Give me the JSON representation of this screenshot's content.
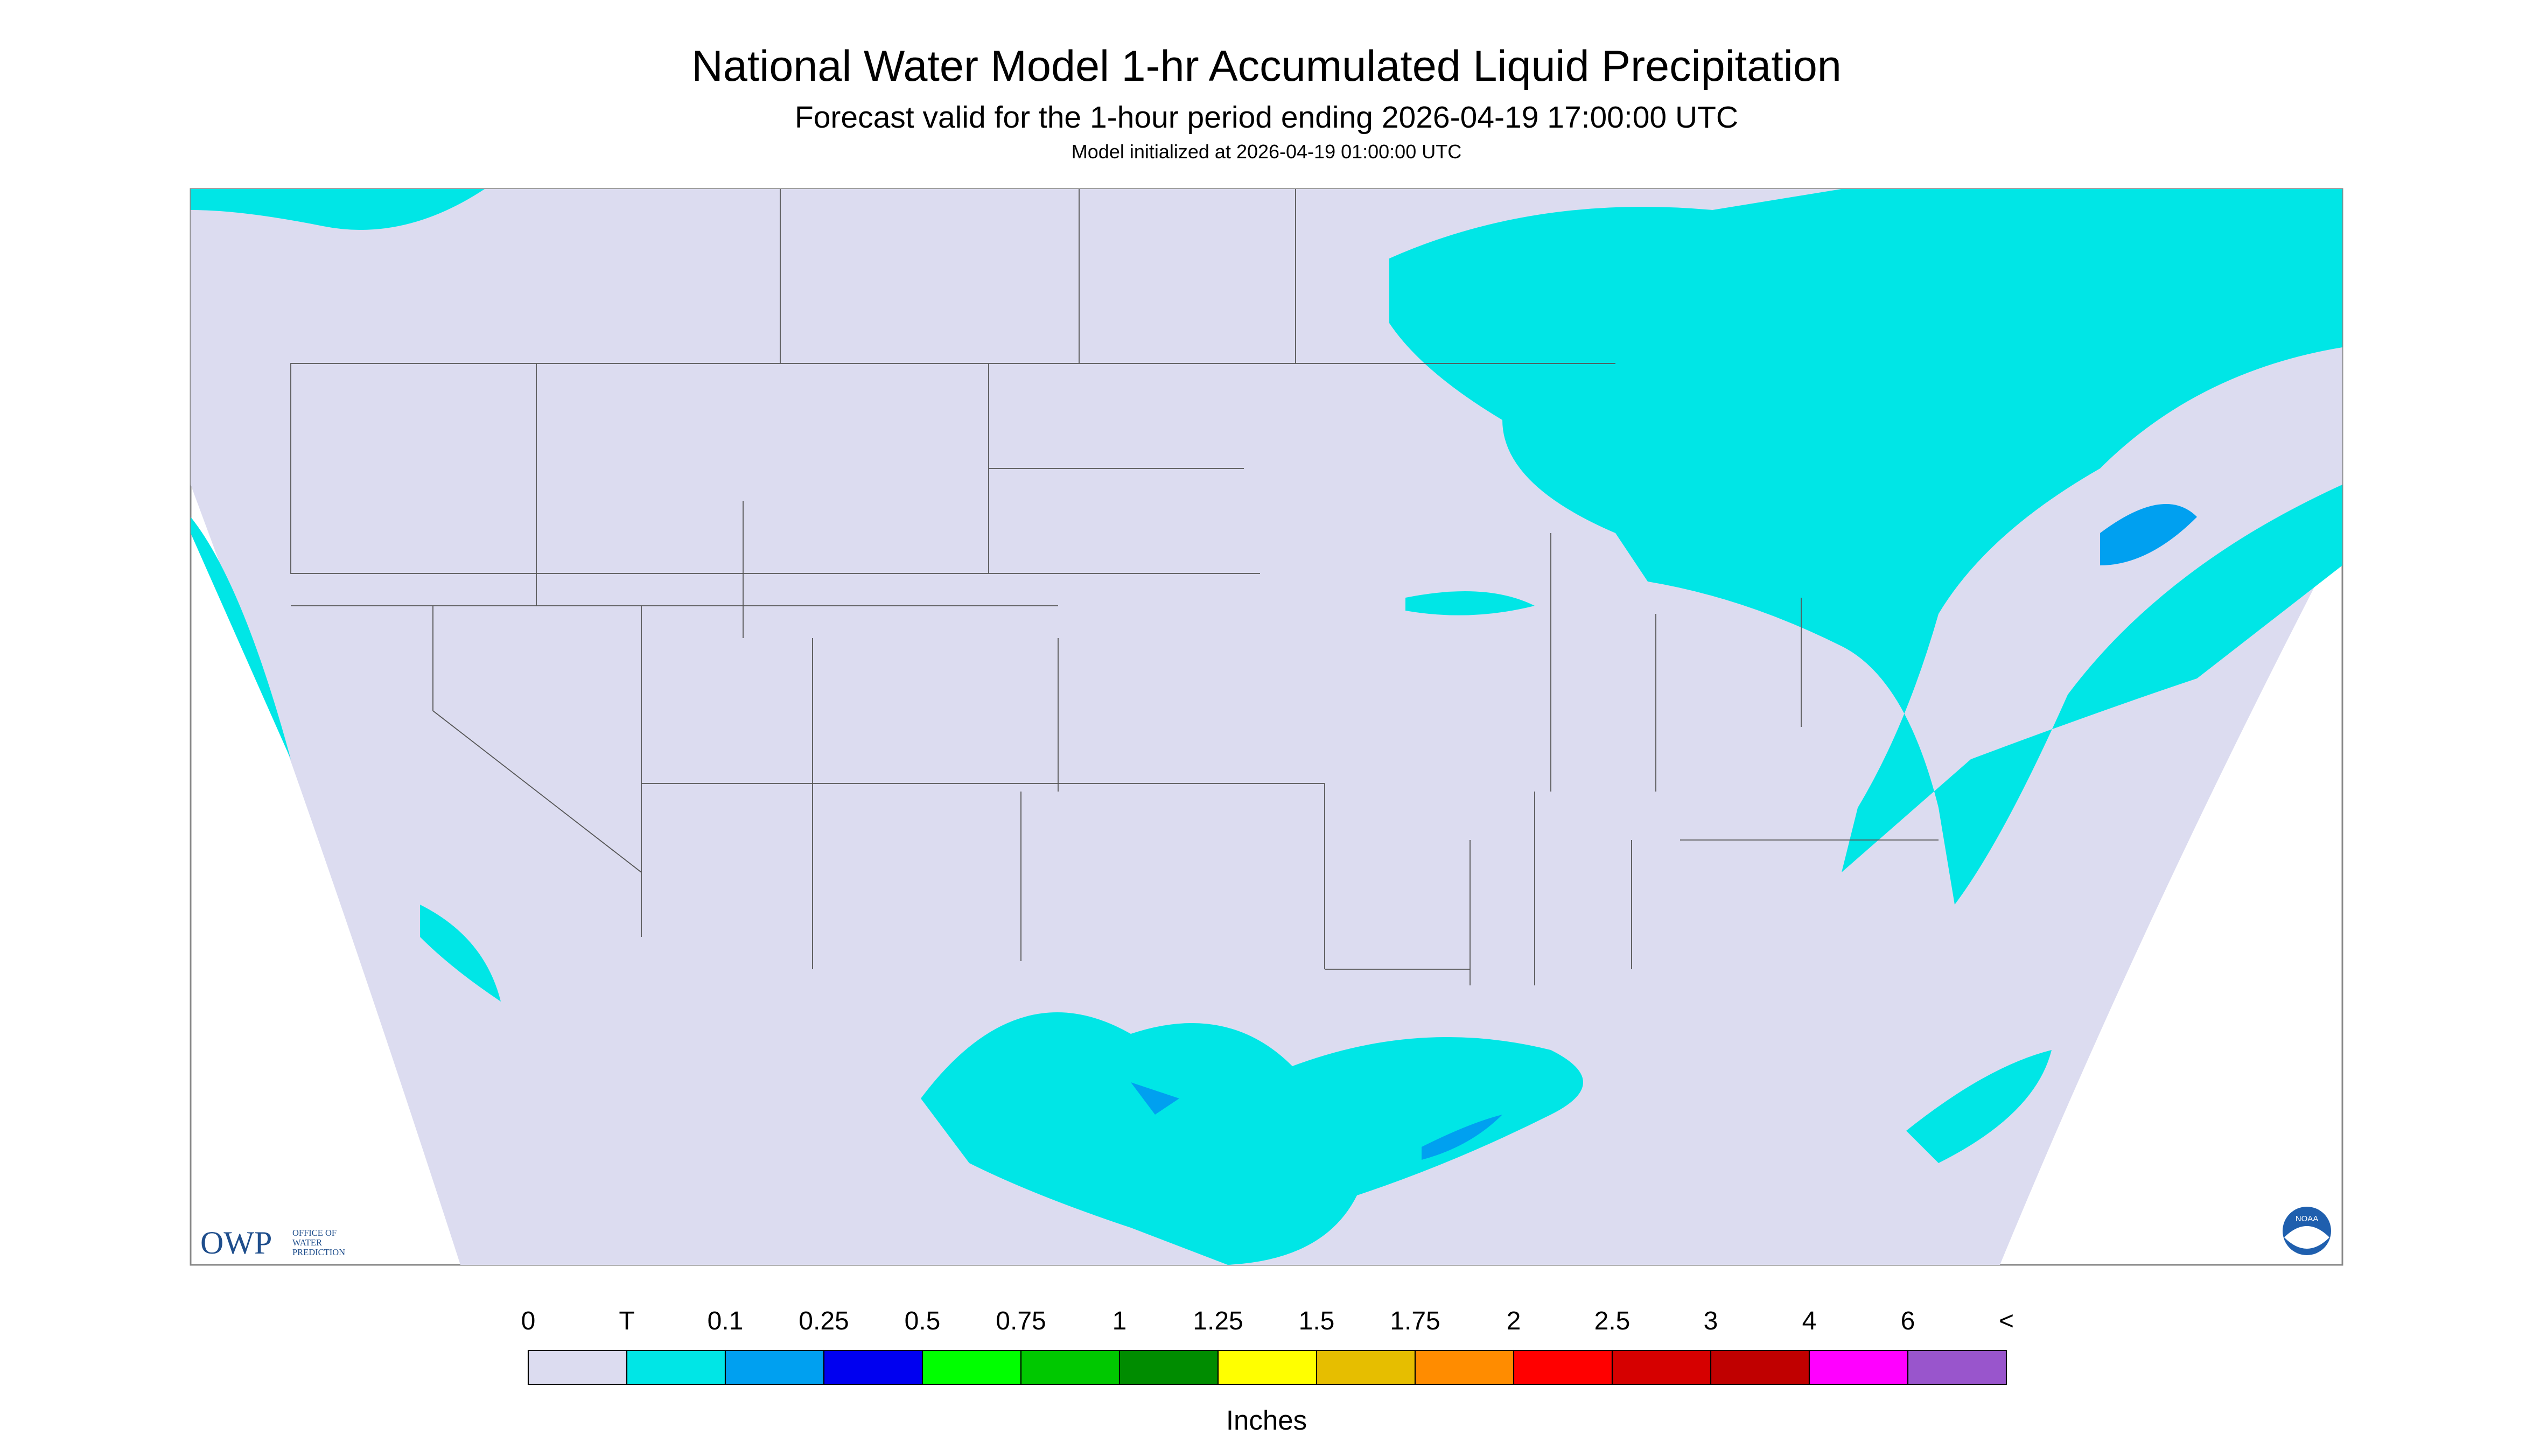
{
  "header": {
    "title": "National Water Model 1-hr Accumulated Liquid Precipitation",
    "subtitle": "Forecast valid for the 1-hour period ending 2026-04-19 17:00:00 UTC",
    "note": "Model initialized at 2026-04-19 01:00:00 UTC"
  },
  "legend": {
    "labels": [
      "0",
      "T",
      "0.1",
      "0.25",
      "0.5",
      "0.75",
      "1",
      "1.25",
      "1.5",
      "1.75",
      "2",
      "2.5",
      "3",
      "4",
      "6",
      "<"
    ],
    "colors": [
      "#dcdcf0",
      "#00e6e6",
      "#00a0f0",
      "#0000f0",
      "#00ff00",
      "#00c800",
      "#008c00",
      "#ffff00",
      "#e6be00",
      "#ff8c00",
      "#ff0000",
      "#d60000",
      "#c00000",
      "#ff00ff",
      "#9955cc"
    ],
    "unit": "Inches"
  },
  "logos": {
    "owp": "OWP",
    "owp_full": [
      "OFFICE OF",
      "WATER",
      "PREDICTION"
    ],
    "noaa": "NOAA"
  }
}
